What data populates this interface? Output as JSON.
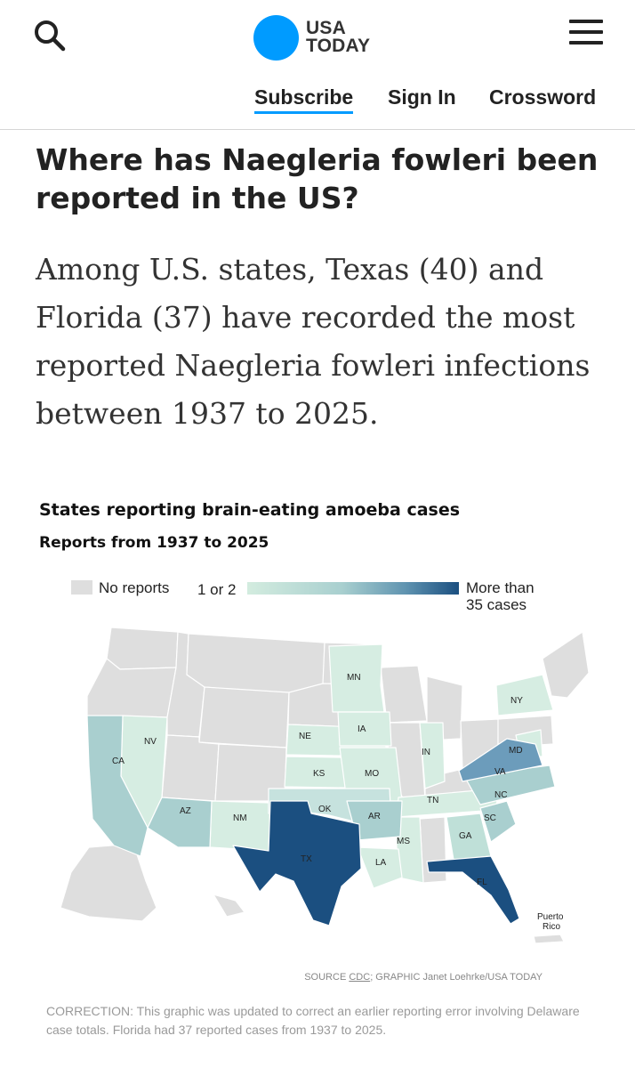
{
  "header": {
    "logo_line1": "USA",
    "logo_line2": "TODAY",
    "nav": {
      "subscribe": "Subscribe",
      "sign_in": "Sign In",
      "crossword": "Crossword"
    },
    "accent_color": "#009bff"
  },
  "article": {
    "headline": "Where has Naegleria fowleri been reported in the US?",
    "lede": "Among U.S. states, Texas (40) and Florida (37) have recorded the most reported Naegleria fowleri infections between 1937 to 2025."
  },
  "graphic": {
    "title": "States reporting brain-eating amoeba cases",
    "subtitle": "Reports from 1937 to 2025",
    "legend": {
      "no_reports": "No reports",
      "low": "1 or 2",
      "high_line1": "More than",
      "high_line2": "35 cases",
      "colors": {
        "none": "#dedede",
        "low": "#d3ecdf",
        "mid": "#a8cfcf",
        "high": "#1b4f80"
      }
    },
    "state_labels": {
      "CA": "CA",
      "NV": "NV",
      "AZ": "AZ",
      "NM": "NM",
      "TX": "TX",
      "OK": "OK",
      "KS": "KS",
      "NE": "NE",
      "MN": "MN",
      "IA": "IA",
      "MO": "MO",
      "AR": "AR",
      "LA": "LA",
      "MS": "MS",
      "TN": "TN",
      "IN": "IN",
      "GA": "GA",
      "SC": "SC",
      "NC": "NC",
      "VA": "VA",
      "MD": "MD",
      "NY": "NY",
      "FL": "FL"
    },
    "territory_label_line1": "Puerto",
    "territory_label_line2": "Rico",
    "source_prefix": "SOURCE ",
    "source_link": "CDC",
    "source_suffix": "; GRAPHIC Janet Loehrke/USA TODAY",
    "correction": "CORRECTION: This graphic was updated to correct an earlier reporting error involving Delaware case totals. Florida had 37 reported cases from 1937 to 2025."
  }
}
